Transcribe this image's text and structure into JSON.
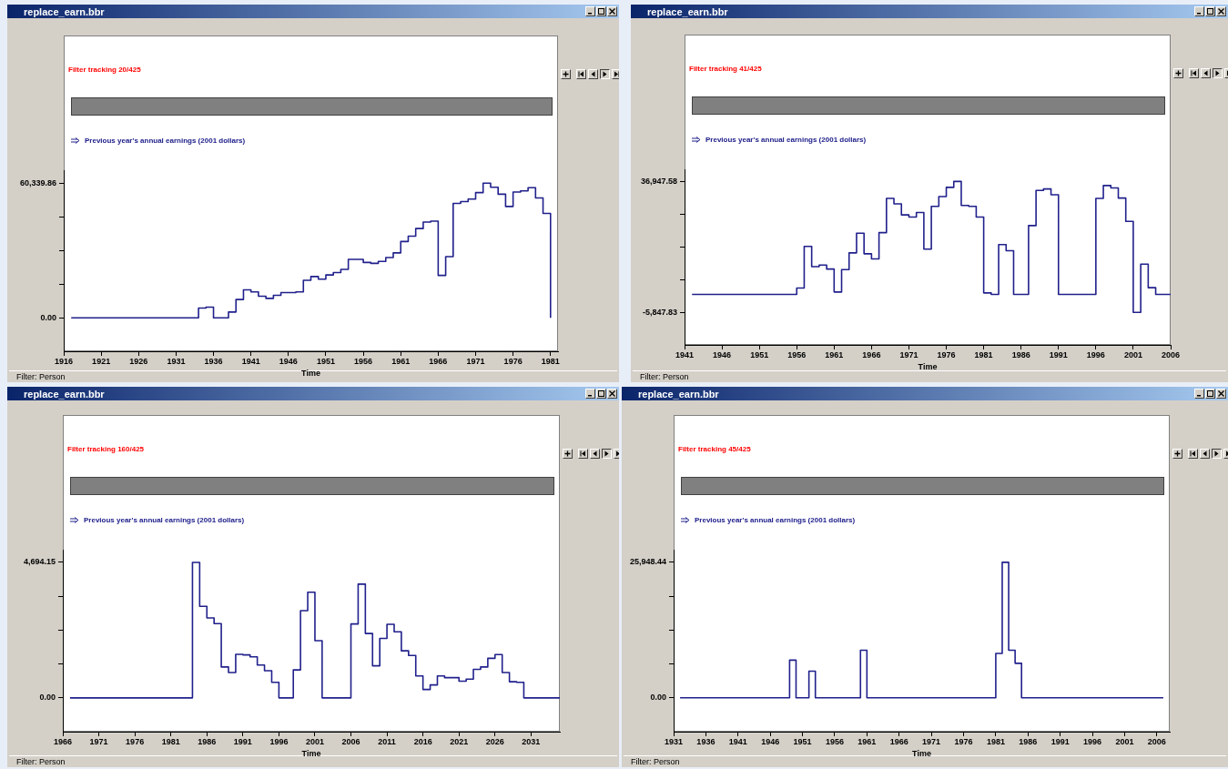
{
  "chart_data": [
    {
      "type": "step",
      "title": "replace_earn.bbr",
      "subtitle": "Filter tracking 20/425",
      "xlabel": "Time",
      "legend": "top left",
      "annotations": [
        "Filter: Person"
      ],
      "xlim": [
        1916,
        1982
      ],
      "xticks": [
        1916,
        1921,
        1926,
        1931,
        1936,
        1941,
        1946,
        1951,
        1956,
        1961,
        1966,
        1971,
        1976,
        1981
      ],
      "ylim": [
        -15000,
        66000
      ],
      "yticks": [
        {
          "value": 0,
          "label": "0.00"
        },
        {
          "value": 15084.97,
          "label": null
        },
        {
          "value": 30169.93,
          "label": null
        },
        {
          "value": 45254.9,
          "label": null
        },
        {
          "value": 60339.86,
          "label": "60,339.86"
        }
      ],
      "series": [
        {
          "name": "Previous year's annual earnings (2001 dollars)",
          "color": "#20208c",
          "x": [
            1917,
            1934,
            1935,
            1936,
            1938,
            1939,
            1940,
            1941,
            1942,
            1943,
            1944,
            1945,
            1947,
            1948,
            1949,
            1950,
            1951,
            1952,
            1953,
            1954,
            1956,
            1957,
            1958,
            1959,
            1960,
            1961,
            1962,
            1963,
            1964,
            1965,
            1966,
            1967,
            1968,
            1969,
            1970,
            1971,
            1972,
            1973,
            1974,
            1975,
            1976,
            1977,
            1978,
            1979,
            1980,
            1981
          ],
          "values": [
            0,
            4400,
            4800,
            0,
            2600,
            8200,
            12500,
            11600,
            9700,
            8700,
            10100,
            11300,
            11600,
            16800,
            18500,
            17300,
            19200,
            20300,
            21700,
            26200,
            24800,
            24400,
            25300,
            27000,
            29100,
            34200,
            36600,
            40000,
            42900,
            43300,
            19000,
            27400,
            51300,
            52100,
            53200,
            56100,
            60340,
            58500,
            55400,
            49900,
            56400,
            56900,
            58300,
            53700,
            46800,
            0
          ]
        }
      ]
    },
    {
      "type": "step",
      "title": "replace_earn.bbr",
      "subtitle": "Filter tracking 41/425",
      "xlabel": "Time",
      "legend": "top left",
      "annotations": [
        "Filter: Person"
      ],
      "xlim": [
        1941,
        2006
      ],
      "xticks": [
        1941,
        1946,
        1951,
        1956,
        1961,
        1966,
        1971,
        1976,
        1981,
        1986,
        1991,
        1996,
        2001,
        2006
      ],
      "ylim": [
        -16500,
        40800
      ],
      "yticks": [
        {
          "value": -5847.83,
          "label": "-5,847.83"
        },
        {
          "value": 4851.02,
          "label": null
        },
        {
          "value": 15549.88,
          "label": null
        },
        {
          "value": 26248.73,
          "label": null
        },
        {
          "value": 36947.58,
          "label": "36,947.58"
        }
      ],
      "series": [
        {
          "name": "Previous year's annual earnings (2001 dollars)",
          "color": "#20208c",
          "x": [
            1942,
            1956,
            1957,
            1958,
            1959,
            1960,
            1961,
            1962,
            1963,
            1964,
            1965,
            1966,
            1967,
            1968,
            1969,
            1970,
            1971,
            1972,
            1973,
            1974,
            1975,
            1976,
            1977,
            1978,
            1979,
            1980,
            1981,
            1982,
            1983,
            1984,
            1985,
            1987,
            1988,
            1989,
            1990,
            1991,
            1996,
            1997,
            1998,
            1999,
            2000,
            2001,
            2002,
            2003,
            2004,
            2006
          ],
          "values": [
            0,
            2100,
            15700,
            9100,
            9600,
            8300,
            800,
            8100,
            13600,
            20000,
            13300,
            11600,
            20200,
            31400,
            29600,
            26000,
            25300,
            26800,
            14800,
            28800,
            32000,
            35000,
            36950,
            29100,
            28800,
            25300,
            500,
            0,
            16300,
            14300,
            0,
            22500,
            34000,
            34500,
            32600,
            0,
            31400,
            35600,
            34800,
            31500,
            23900,
            -5850,
            9900,
            2200,
            0,
            0
          ]
        }
      ]
    },
    {
      "type": "step",
      "title": "replace_earn.bbr",
      "subtitle": "Filter tracking 160/425",
      "xlabel": "Time",
      "legend": "top left",
      "annotations": [
        "Filter: Person"
      ],
      "xlim": [
        1966,
        2035
      ],
      "xticks": [
        1966,
        1971,
        1976,
        1981,
        1986,
        1991,
        1996,
        2001,
        2006,
        2011,
        2016,
        2021,
        2026,
        2031
      ],
      "ylim": [
        -1170,
        5120
      ],
      "yticks": [
        {
          "value": 0,
          "label": "0.00"
        },
        {
          "value": 1173.54,
          "label": null
        },
        {
          "value": 2347.08,
          "label": null
        },
        {
          "value": 3520.61,
          "label": null
        },
        {
          "value": 4694.15,
          "label": "4,694.15"
        }
      ],
      "series": [
        {
          "name": "Previous year's annual earnings (2001 dollars)",
          "color": "#20208c",
          "x": [
            1967,
            1984,
            1985,
            1986,
            1987,
            1988,
            1989,
            1990,
            1991,
            1992,
            1993,
            1994,
            1995,
            1996,
            1998,
            1999,
            2000,
            2001,
            2002,
            2006,
            2007,
            2008,
            2009,
            2010,
            2011,
            2012,
            2013,
            2014,
            2015,
            2016,
            2017,
            2018,
            2019,
            2021,
            2022,
            2023,
            2024,
            2025,
            2026,
            2027,
            2028,
            2029,
            2030,
            2035
          ],
          "values": [
            0,
            4690,
            3170,
            2770,
            2570,
            1070,
            880,
            1510,
            1490,
            1420,
            1140,
            940,
            540,
            0,
            970,
            3020,
            3660,
            1980,
            0,
            2560,
            3940,
            2230,
            1110,
            2060,
            2550,
            2290,
            1630,
            1470,
            760,
            290,
            450,
            760,
            700,
            580,
            650,
            990,
            1070,
            1370,
            1500,
            880,
            560,
            540,
            0,
            0
          ]
        }
      ]
    },
    {
      "type": "step",
      "title": "replace_earn.bbr",
      "subtitle": "Filter tracking 45/425",
      "xlabel": "Time",
      "legend": "top left",
      "annotations": [
        "Filter: Person"
      ],
      "xlim": [
        1931,
        2008
      ],
      "xticks": [
        1931,
        1936,
        1941,
        1946,
        1951,
        1956,
        1961,
        1966,
        1971,
        1976,
        1981,
        1986,
        1991,
        1996,
        2001,
        2006
      ],
      "ylim": [
        -6500,
        28300
      ],
      "yticks": [
        {
          "value": 0,
          "label": "0.00"
        },
        {
          "value": 6487.11,
          "label": null
        },
        {
          "value": 12974.22,
          "label": null
        },
        {
          "value": 19461.33,
          "label": null
        },
        {
          "value": 25948.44,
          "label": "25,948.44"
        }
      ],
      "series": [
        {
          "name": "Previous year's annual earnings (2001 dollars)",
          "color": "#20208c",
          "x": [
            1932,
            1949,
            1950,
            1952,
            1953,
            1960,
            1961,
            1981,
            1982,
            1983,
            1984,
            1985,
            2007
          ],
          "values": [
            0,
            7200,
            0,
            5100,
            0,
            9100,
            0,
            8500,
            25950,
            9100,
            6600,
            0,
            0
          ]
        }
      ]
    }
  ]
}
